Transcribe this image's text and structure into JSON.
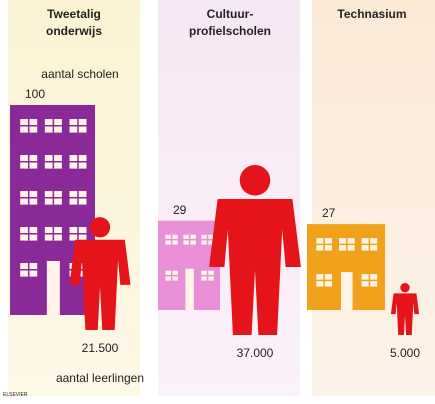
{
  "chart_data": {
    "type": "pictogram",
    "categories": [
      "Tweetalig\nonderwijs",
      "Cultuur-\nprofielscholen",
      "Technasium"
    ],
    "series": [
      {
        "name": "aantal scholen",
        "colors": [
          "#8a2a98",
          "#e98fd8",
          "#f0a21c"
        ],
        "values": [
          100,
          29,
          27
        ]
      },
      {
        "name": "aantal leerlingen",
        "color": "#e5141b",
        "values": [
          21500,
          37000,
          5000
        ],
        "value_labels": [
          "21.500",
          "37.000",
          "5.000"
        ]
      }
    ],
    "source": "ELSEVIER"
  }
}
